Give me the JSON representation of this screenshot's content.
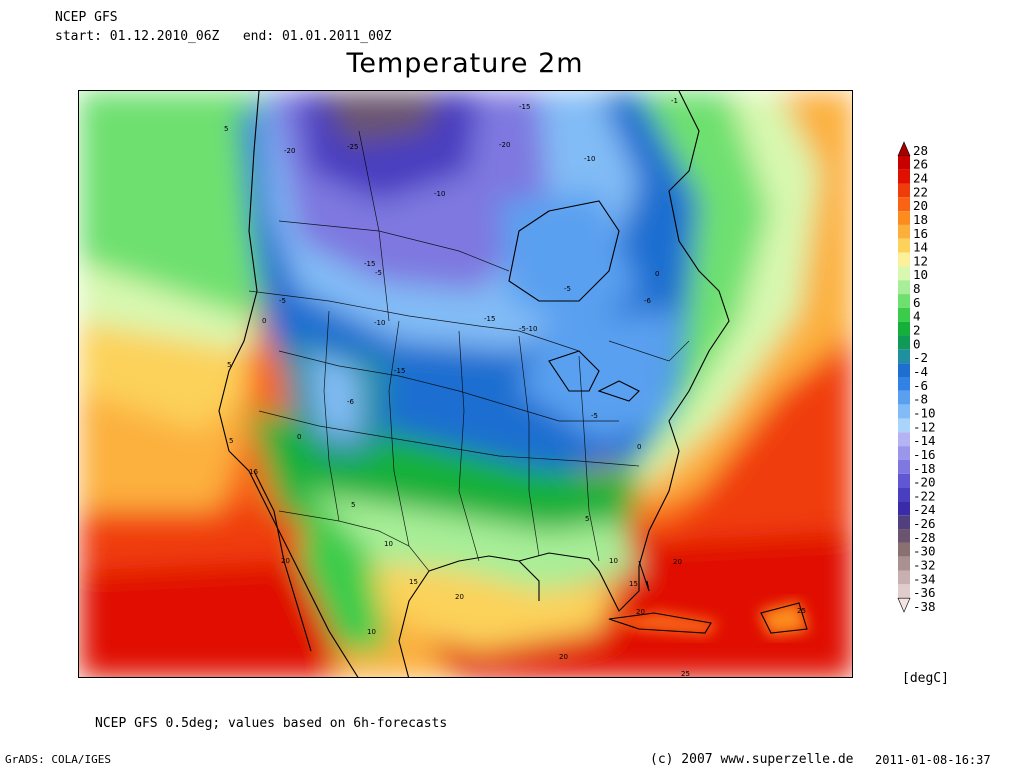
{
  "header": {
    "model": "NCEP GFS",
    "period": "start: 01.12.2010_06Z   end: 01.01.2011_00Z"
  },
  "title": "Temperature 2m",
  "footer": {
    "note": "NCEP GFS 0.5deg; values based on 6h-forecasts",
    "grads": "GrADS: COLA/IGES",
    "copyright": "(c) 2007 www.superzelle.de",
    "timestamp": "2011-01-08-16:37"
  },
  "colorbar": {
    "unit": "[degC]",
    "levels": [
      {
        "value": "28",
        "color": "#a80000"
      },
      {
        "value": "26",
        "color": "#c80000"
      },
      {
        "value": "24",
        "color": "#e01000"
      },
      {
        "value": "22",
        "color": "#f03c0a"
      },
      {
        "value": "20",
        "color": "#f86414"
      },
      {
        "value": "18",
        "color": "#fc8c1e"
      },
      {
        "value": "16",
        "color": "#fcb03c"
      },
      {
        "value": "14",
        "color": "#fcd25a"
      },
      {
        "value": "12",
        "color": "#fcf09a"
      },
      {
        "value": "10",
        "color": "#d8f8b0"
      },
      {
        "value": "8",
        "color": "#a8ee98"
      },
      {
        "value": "6",
        "color": "#6ee070"
      },
      {
        "value": "4",
        "color": "#3ccc4c"
      },
      {
        "value": "2",
        "color": "#14b03a"
      },
      {
        "value": "0",
        "color": "#109a58"
      },
      {
        "value": "-2",
        "color": "#2090a0"
      },
      {
        "value": "-4",
        "color": "#1e6ed0"
      },
      {
        "value": "-6",
        "color": "#3282e6"
      },
      {
        "value": "-8",
        "color": "#5aa0f0"
      },
      {
        "value": "-10",
        "color": "#82bcf6"
      },
      {
        "value": "-12",
        "color": "#aad4fa"
      },
      {
        "value": "-14",
        "color": "#b4b4f4"
      },
      {
        "value": "-16",
        "color": "#9a96ec"
      },
      {
        "value": "-18",
        "color": "#7e78e0"
      },
      {
        "value": "-20",
        "color": "#6058d2"
      },
      {
        "value": "-22",
        "color": "#4a3ec0"
      },
      {
        "value": "-24",
        "color": "#3a2ca8"
      },
      {
        "value": "-26",
        "color": "#504080"
      },
      {
        "value": "-28",
        "color": "#6a5470"
      },
      {
        "value": "-30",
        "color": "#8a7070"
      },
      {
        "value": "-32",
        "color": "#aa9090"
      },
      {
        "value": "-34",
        "color": "#c8b0b0"
      },
      {
        "value": "-36",
        "color": "#e0cccc"
      },
      {
        "value": "-38",
        "color": "#f4e4e4"
      }
    ]
  },
  "map_labels": [
    {
      "text": "-20"
    },
    {
      "text": "-25"
    },
    {
      "text": "-20"
    },
    {
      "text": "-15"
    },
    {
      "text": "-10"
    },
    {
      "text": "-15"
    },
    {
      "text": "-15"
    },
    {
      "text": "-10"
    },
    {
      "text": "-5"
    },
    {
      "text": "-5"
    },
    {
      "text": "-10"
    },
    {
      "text": "-15"
    },
    {
      "text": "-5-10"
    },
    {
      "text": "-6"
    },
    {
      "text": "0"
    },
    {
      "text": "0"
    },
    {
      "text": "-6"
    },
    {
      "text": "-5"
    },
    {
      "text": "0"
    },
    {
      "text": "5"
    },
    {
      "text": "16"
    },
    {
      "text": "20"
    },
    {
      "text": "5"
    },
    {
      "text": "10"
    },
    {
      "text": "15"
    },
    {
      "text": "10"
    },
    {
      "text": "20"
    },
    {
      "text": "5"
    },
    {
      "text": "10"
    },
    {
      "text": "15"
    },
    {
      "text": "20"
    },
    {
      "text": "20"
    },
    {
      "text": "25"
    },
    {
      "text": "20"
    },
    {
      "text": "25"
    },
    {
      "text": "5"
    },
    {
      "text": "0"
    },
    {
      "text": "-5"
    },
    {
      "text": "5"
    },
    {
      "text": "-1"
    }
  ]
}
